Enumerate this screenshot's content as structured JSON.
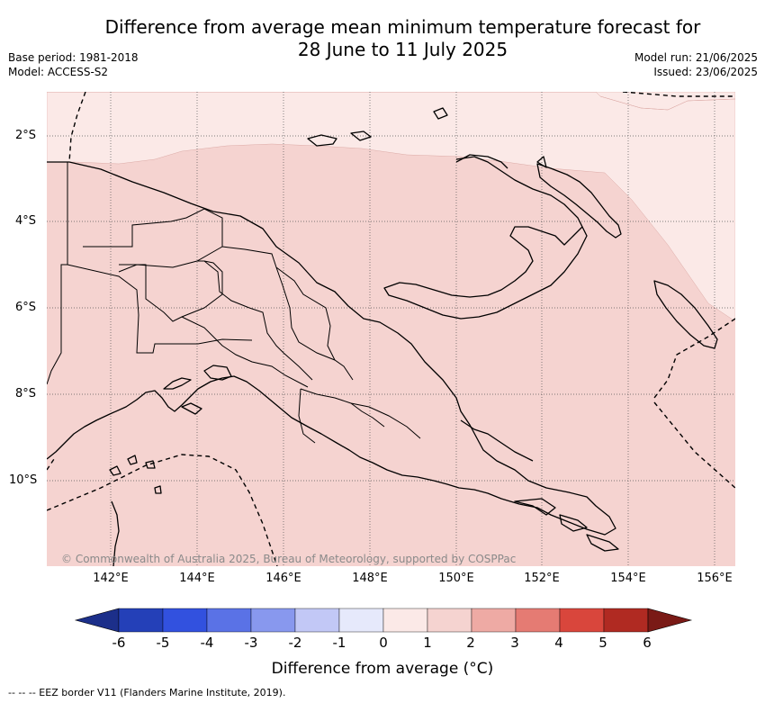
{
  "title_line1": "Difference from average mean minimum temperature forecast for",
  "title_line2": "28 June to 11 July 2025",
  "base_period": "Base period: 1981-2018",
  "model": "Model: ACCESS-S2",
  "model_run": "Model run: 21/06/2025",
  "issued": "Issued: 23/06/2025",
  "copyright": "© Commonwealth of Australia 2025, Bureau of Meteorology, supported by COSPPac",
  "lat_labels": [
    "2°S",
    "4°S",
    "6°S",
    "8°S",
    "10°S"
  ],
  "lon_labels": [
    "142°E",
    "144°E",
    "146°E",
    "148°E",
    "150°E",
    "152°E",
    "154°E",
    "156°E"
  ],
  "colorbar": {
    "title": "Difference from average (°C)",
    "ticks": [
      "-6",
      "-5",
      "-4",
      "-3",
      "-2",
      "-1",
      "0",
      "1",
      "2",
      "3",
      "4",
      "5",
      "6"
    ],
    "colors": [
      "#1c2f8a",
      "#2440b8",
      "#3251df",
      "#5a72e6",
      "#8898ee",
      "#c2c8f6",
      "#e6e9fb",
      "#fbe9e7",
      "#f5d3d0",
      "#eeaaa4",
      "#e57b73",
      "#d9463c",
      "#b02a22",
      "#7a1a16"
    ],
    "category_ranges": [
      "below -6",
      "-6 to -5",
      "-5 to -4",
      "-4 to -3",
      "-3 to -2",
      "-2 to -1",
      "-1 to 0",
      "0 to 1",
      "1 to 2",
      "2 to 3",
      "3 to 4",
      "4 to 5",
      "5 to 6",
      "above 6"
    ]
  },
  "map_fill": {
    "north_ocean_category": "0 to 1",
    "land_and_south_category": "1 to 2",
    "north_color": "#fbe9e7",
    "main_color": "#f5d3d0"
  },
  "footnote": "-- -- -- EEZ border V11 (Flanders Marine Institute, 2019)."
}
